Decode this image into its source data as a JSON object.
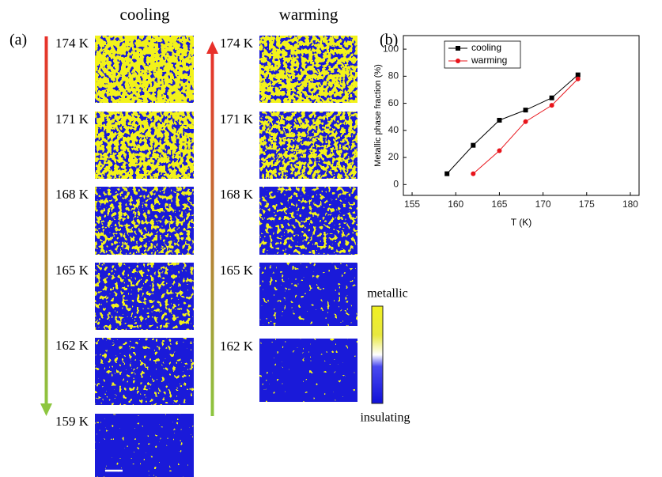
{
  "panel_a": {
    "label": "(a)",
    "cooling": {
      "title": "cooling",
      "temperatures": [
        "174 K",
        "171 K",
        "168 K",
        "165 K",
        "162 K",
        "159 K"
      ]
    },
    "warming": {
      "title": "warming",
      "temperatures": [
        "174 K",
        "171 K",
        "168 K",
        "165 K",
        "162 K"
      ]
    },
    "colorbar": {
      "top": "metallic",
      "bottom": "insulating"
    }
  },
  "panel_b": {
    "label": "(b)"
  },
  "chart_data": {
    "type": "line",
    "x_label": "T (K)",
    "y_label": "Metallic phase fraction (%)",
    "x": [
      159,
      162,
      165,
      168,
      171,
      174
    ],
    "series": [
      {
        "name": "cooling",
        "color": "#000000",
        "marker": "square",
        "values": [
          8,
          29,
          47.5,
          55,
          64,
          81
        ]
      },
      {
        "name": "warming",
        "color": "#e8141b",
        "marker": "circle",
        "values": [
          null,
          8,
          25,
          46.5,
          58.5,
          78
        ]
      }
    ],
    "xlim": [
      154,
      181
    ],
    "xticks": [
      155,
      160,
      165,
      170,
      175,
      180
    ],
    "ylim": [
      -8,
      110
    ],
    "yticks": [
      0,
      20,
      40,
      60,
      80,
      100
    ],
    "legend": "top-left"
  }
}
